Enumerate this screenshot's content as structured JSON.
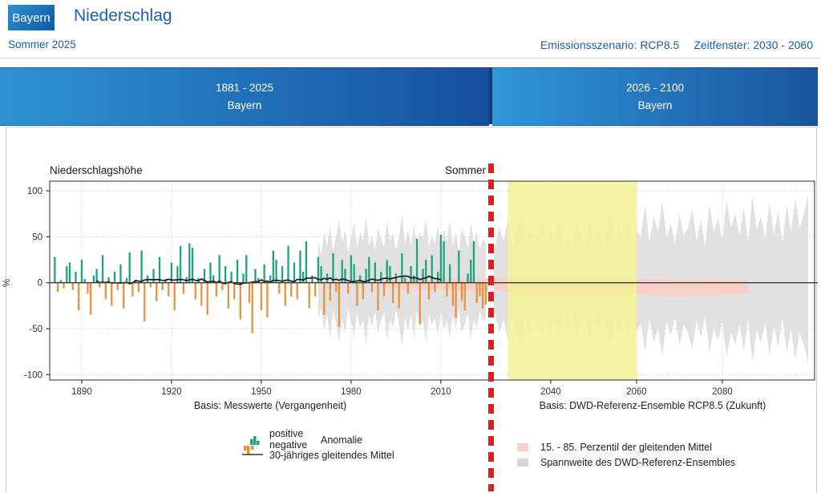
{
  "header": {
    "region_badge": "Bayern",
    "title": "Niederschlag",
    "season_label": "Sommer 2025",
    "scenario_label": "Emissionsszenario: RCP8.5",
    "window_label": "Zeitfenster: 2030 - 2060"
  },
  "panels": {
    "past": {
      "range": "1881 - 2025",
      "region": "Bayern"
    },
    "future": {
      "range": "2026 - 2100",
      "region": "Bayern"
    }
  },
  "legend": {
    "anomaly_positive": "positive",
    "anomaly_negative": "negative",
    "anomaly": "Anomalie",
    "running_mean": "30-jähriges gleitendes Mittel",
    "percentile": "15. - 85. Perzentil der gleitenden Mittel",
    "ensemble": "Spannweite des DWD-Referenz-Ensembles"
  },
  "chart_data": {
    "type": "composite",
    "title_left": "Niederschlagshöhe",
    "title_right": "Sommer",
    "ylabel": "%",
    "ylim": [
      -110,
      112
    ],
    "yticks": [
      100,
      50,
      0,
      -50,
      -100
    ],
    "xticks_past": [
      1890,
      1920,
      1950,
      1980,
      2010
    ],
    "xticks_future": [
      2040,
      2060,
      2080
    ],
    "axis_caption_past": "Basis: Messwerte (Vergangenheit)",
    "axis_caption_future": "Basis: DWD-Referenz-Ensemble RCP8.5 (Zukunft)",
    "divider_year": 2026,
    "highlight_window": {
      "from": 2030,
      "to": 2060
    },
    "running_mean_window": 30,
    "anomalies": {
      "type": "bar",
      "start_year": 1881,
      "values": [
        28,
        -10,
        3,
        -6,
        18,
        22,
        -8,
        12,
        -30,
        25,
        4,
        -12,
        -35,
        8,
        15,
        -5,
        30,
        -18,
        6,
        -25,
        12,
        -8,
        20,
        -28,
        5,
        33,
        -15,
        3,
        -10,
        35,
        -42,
        8,
        -5,
        15,
        -20,
        28,
        -8,
        4,
        -15,
        22,
        -30,
        18,
        40,
        -12,
        6,
        43,
        38,
        -18,
        5,
        -25,
        15,
        -35,
        22,
        8,
        -15,
        30,
        -8,
        18,
        -28,
        12,
        -18,
        25,
        -40,
        10,
        30,
        -22,
        -55,
        15,
        5,
        -30,
        20,
        -38,
        8,
        35,
        25,
        -12,
        18,
        -25,
        40,
        -15,
        22,
        -18,
        35,
        12,
        45,
        -28,
        8,
        -15,
        28,
        18,
        -35,
        10,
        -20,
        32,
        -10,
        -48,
        25,
        15,
        -12,
        30,
        20,
        -25,
        8,
        -18,
        15,
        28,
        -10,
        22,
        -30,
        12,
        -15,
        25,
        18,
        -22,
        10,
        -28,
        32,
        5,
        -12,
        18,
        8,
        48,
        -45,
        15,
        25,
        -18,
        30,
        -10,
        12,
        52,
        45,
        -15,
        20,
        -25,
        -38,
        35,
        -20,
        -30,
        10,
        25,
        45,
        -22,
        -15,
        -28,
        -24
      ]
    },
    "ensemble_past": {
      "type": "area",
      "start_year": 1969,
      "top": [
        45,
        30,
        55,
        40,
        62,
        35,
        50,
        70,
        42,
        58,
        33,
        48,
        65,
        38,
        55,
        45,
        72,
        40,
        52,
        35,
        60,
        48,
        38,
        68,
        45,
        55,
        35,
        50,
        75,
        42,
        58,
        40,
        65,
        35,
        55,
        48,
        70,
        38,
        52,
        42,
        62,
        35,
        58,
        45,
        68,
        40,
        55,
        32,
        60,
        50,
        38,
        65,
        45,
        55,
        35,
        48,
        42
      ],
      "bottom": [
        -40,
        -28,
        -52,
        -35,
        -60,
        -30,
        -45,
        -65,
        -38,
        -55,
        -28,
        -42,
        -60,
        -33,
        -50,
        -40,
        -68,
        -35,
        -48,
        -30,
        -55,
        -42,
        -32,
        -62,
        -40,
        -50,
        -30,
        -45,
        -70,
        -38,
        -52,
        -35,
        -60,
        -30,
        -48,
        -42,
        -65,
        -33,
        -46,
        -38,
        -58,
        -30,
        -52,
        -40,
        -62,
        -35,
        -50,
        -28,
        -55,
        -45,
        -33,
        -60,
        -40,
        -50,
        -30,
        -42,
        -38
      ]
    },
    "ensemble_future": {
      "type": "area",
      "start_year": 2026,
      "top": [
        50,
        38,
        62,
        45,
        70,
        40,
        55,
        75,
        48,
        60,
        38,
        52,
        68,
        42,
        58,
        48,
        72,
        40,
        55,
        38,
        65,
        50,
        42,
        70,
        48,
        58,
        38,
        55,
        78,
        45,
        62,
        42,
        68,
        38,
        58,
        50,
        85,
        45,
        72,
        55,
        88,
        48,
        65,
        42,
        75,
        52,
        60,
        80,
        46,
        68,
        40,
        85,
        55,
        70,
        45,
        90,
        60,
        75,
        50,
        82,
        45,
        95,
        58,
        72,
        48,
        88,
        52,
        78,
        42,
        85,
        55,
        92,
        60,
        75,
        96
      ],
      "bottom": [
        -45,
        -32,
        -55,
        -40,
        -62,
        -35,
        -50,
        -68,
        -42,
        -55,
        -33,
        -46,
        -60,
        -38,
        -52,
        -42,
        -65,
        -35,
        -50,
        -33,
        -58,
        -45,
        -38,
        -62,
        -42,
        -52,
        -33,
        -50,
        -70,
        -40,
        -55,
        -38,
        -60,
        -33,
        -52,
        -45,
        -75,
        -40,
        -65,
        -50,
        -80,
        -42,
        -58,
        -38,
        -68,
        -46,
        -54,
        -72,
        -41,
        -60,
        -36,
        -76,
        -50,
        -63,
        -40,
        -82,
        -54,
        -68,
        -45,
        -74,
        -40,
        -86,
        -52,
        -65,
        -43,
        -80,
        -47,
        -70,
        -38,
        -76,
        -50,
        -84,
        -54,
        -68,
        -88
      ]
    },
    "percentile_band": {
      "type": "area",
      "years": [
        1990,
        1996,
        2002,
        2008,
        2014,
        2020,
        2026,
        2032,
        2040,
        2048,
        2056,
        2060,
        2066,
        2072,
        2078,
        2084,
        2086
      ],
      "top": [
        3,
        4,
        4,
        5,
        5,
        4,
        5,
        6,
        5,
        5,
        5,
        4,
        4,
        3,
        3,
        3,
        2
      ],
      "bottom": [
        -4,
        -6,
        -7,
        -8,
        -8,
        -9,
        -9,
        -10,
        -11,
        -10,
        -10,
        -12,
        -14,
        -14,
        -13,
        -12,
        -11
      ]
    },
    "colors": {
      "positive": "#1ca47d",
      "negative": "#e8923c",
      "mean": "#1a1a1a",
      "ensemble": "#e1e1e1",
      "ensemble_legend": "#d6d6d6",
      "percentile": "#f9cfc7",
      "highlight": "#f5f195",
      "forecast_line": "#de1f1f",
      "accent_blue": "#1a5faf"
    }
  }
}
